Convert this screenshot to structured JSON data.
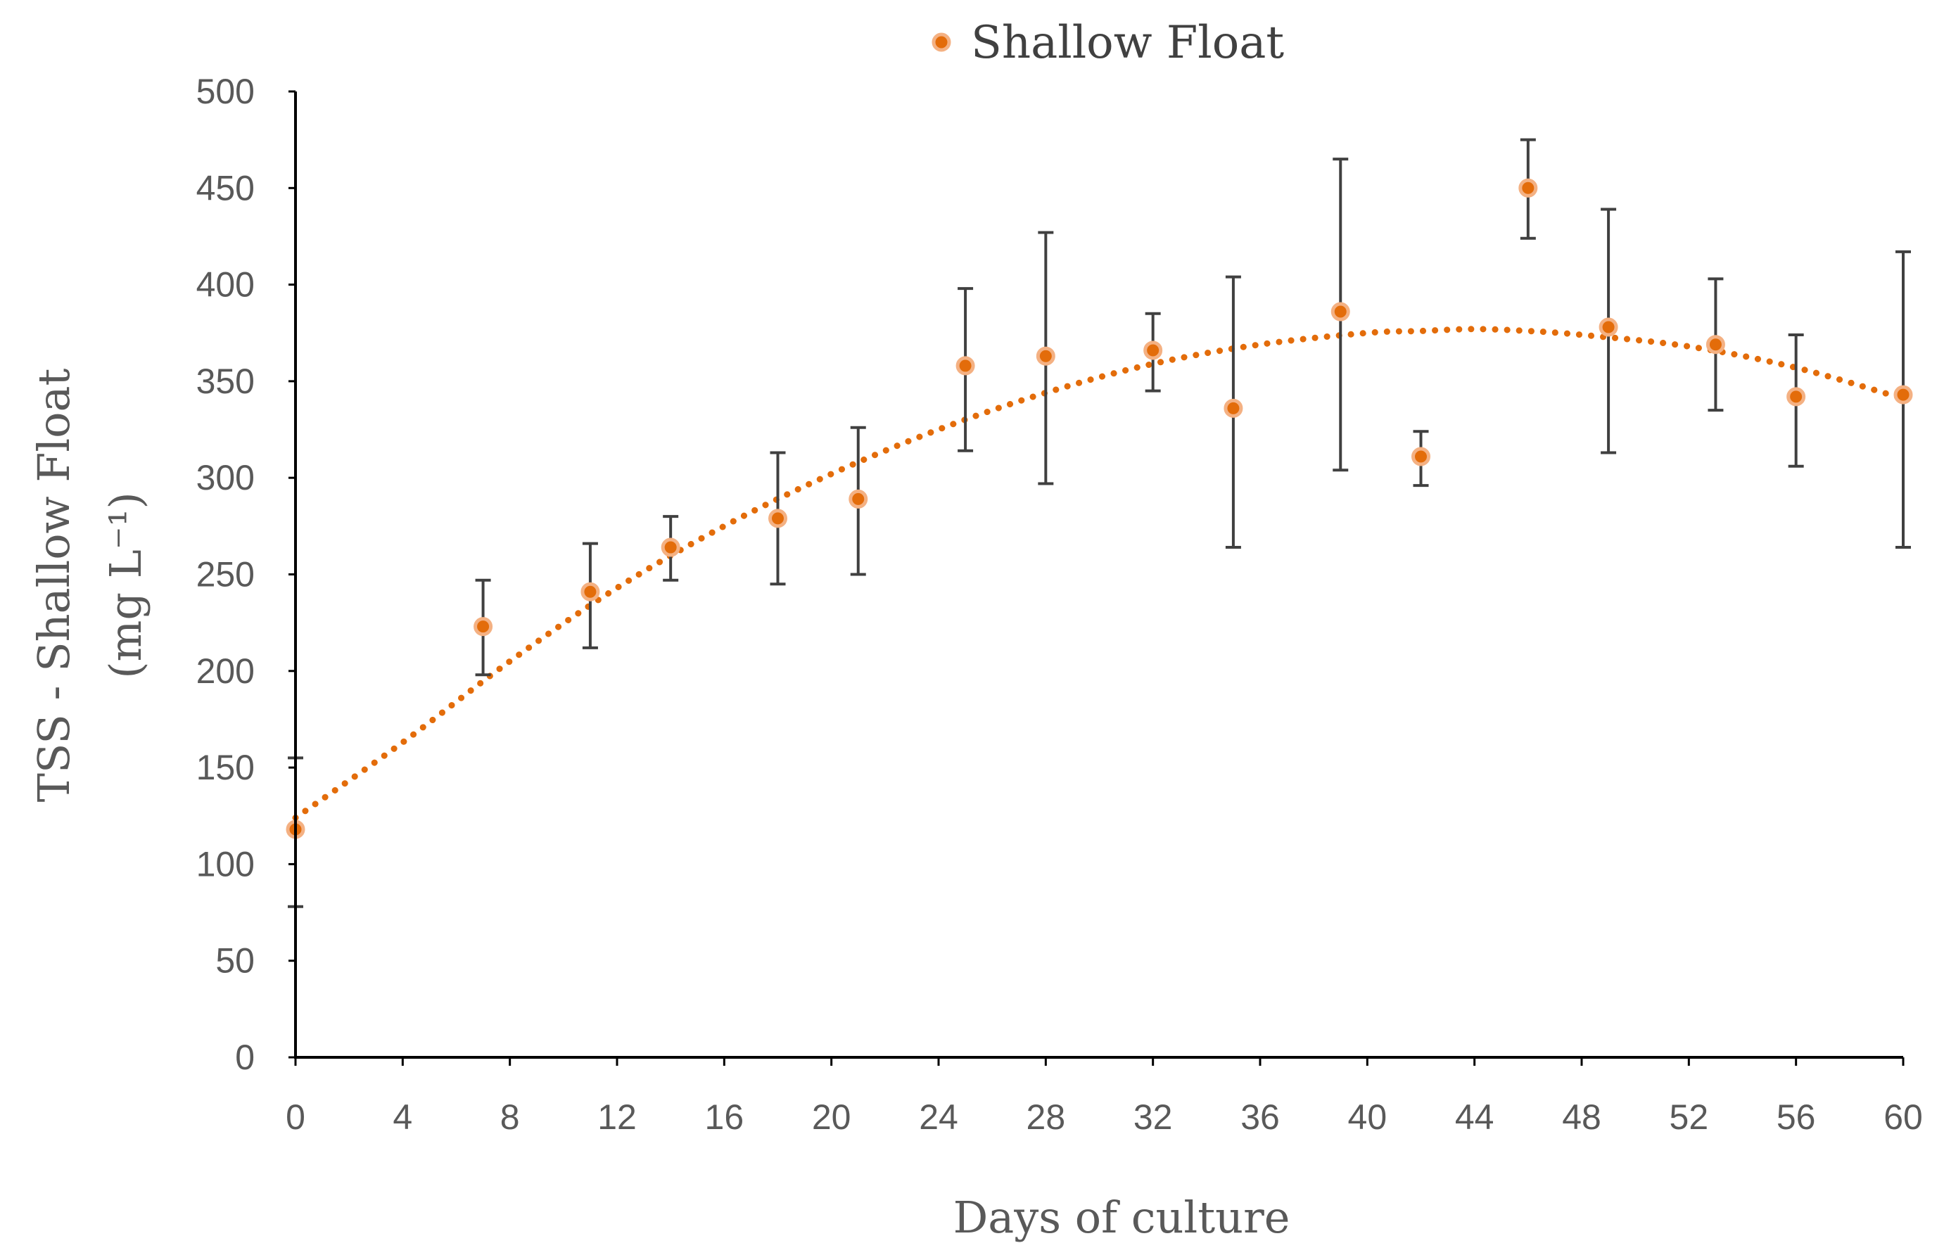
{
  "chart_data": {
    "type": "scatter",
    "legend": {
      "position": "top",
      "label": "Shallow Float"
    },
    "xlabel": "Days of culture",
    "ylabel_line1": "TSS - Shallow Float",
    "ylabel_line2": "(mg L⁻¹)",
    "xlim": [
      0,
      60
    ],
    "ylim": [
      0,
      500
    ],
    "x_ticks": [
      0,
      4,
      8,
      12,
      16,
      20,
      24,
      28,
      32,
      36,
      40,
      44,
      48,
      52,
      56,
      60
    ],
    "y_ticks": [
      0,
      50,
      100,
      150,
      200,
      250,
      300,
      350,
      400,
      450,
      500
    ],
    "grid": false,
    "series": [
      {
        "name": "Shallow Float",
        "color": "#E36C0A",
        "edge_color": "#F4B183",
        "points": [
          {
            "x": 0,
            "y": 118,
            "err_low": 78,
            "err_high": 155
          },
          {
            "x": 7,
            "y": 223,
            "err_low": 198,
            "err_high": 247
          },
          {
            "x": 11,
            "y": 241,
            "err_low": 212,
            "err_high": 266
          },
          {
            "x": 14,
            "y": 264,
            "err_low": 247,
            "err_high": 280
          },
          {
            "x": 18,
            "y": 279,
            "err_low": 245,
            "err_high": 313
          },
          {
            "x": 21,
            "y": 289,
            "err_low": 250,
            "err_high": 326
          },
          {
            "x": 25,
            "y": 358,
            "err_low": 314,
            "err_high": 398
          },
          {
            "x": 28,
            "y": 363,
            "err_low": 297,
            "err_high": 427
          },
          {
            "x": 32,
            "y": 366,
            "err_low": 345,
            "err_high": 385
          },
          {
            "x": 35,
            "y": 336,
            "err_low": 264,
            "err_high": 404
          },
          {
            "x": 39,
            "y": 386,
            "err_low": 304,
            "err_high": 465
          },
          {
            "x": 42,
            "y": 311,
            "err_low": 296,
            "err_high": 324
          },
          {
            "x": 46,
            "y": 450,
            "err_low": 424,
            "err_high": 475
          },
          {
            "x": 49,
            "y": 378,
            "err_low": 313,
            "err_high": 439
          },
          {
            "x": 53,
            "y": 369,
            "err_low": 335,
            "err_high": 403
          },
          {
            "x": 56,
            "y": 342,
            "err_low": 306,
            "err_high": 374
          },
          {
            "x": 60,
            "y": 343,
            "err_low": 264,
            "err_high": 417
          }
        ]
      }
    ],
    "trendline": {
      "type": "polynomial",
      "style": "dotted",
      "color": "#E36C0A",
      "points": [
        {
          "x": 0,
          "y": 124
        },
        {
          "x": 4,
          "y": 163
        },
        {
          "x": 8,
          "y": 205
        },
        {
          "x": 12,
          "y": 243
        },
        {
          "x": 16,
          "y": 275
        },
        {
          "x": 20,
          "y": 302
        },
        {
          "x": 24,
          "y": 325
        },
        {
          "x": 28,
          "y": 344
        },
        {
          "x": 32,
          "y": 359
        },
        {
          "x": 36,
          "y": 369
        },
        {
          "x": 40,
          "y": 375
        },
        {
          "x": 42,
          "y": 376
        },
        {
          "x": 44,
          "y": 377
        },
        {
          "x": 46,
          "y": 376
        },
        {
          "x": 48,
          "y": 374
        },
        {
          "x": 52,
          "y": 368
        },
        {
          "x": 56,
          "y": 357
        },
        {
          "x": 60,
          "y": 341
        }
      ]
    }
  }
}
